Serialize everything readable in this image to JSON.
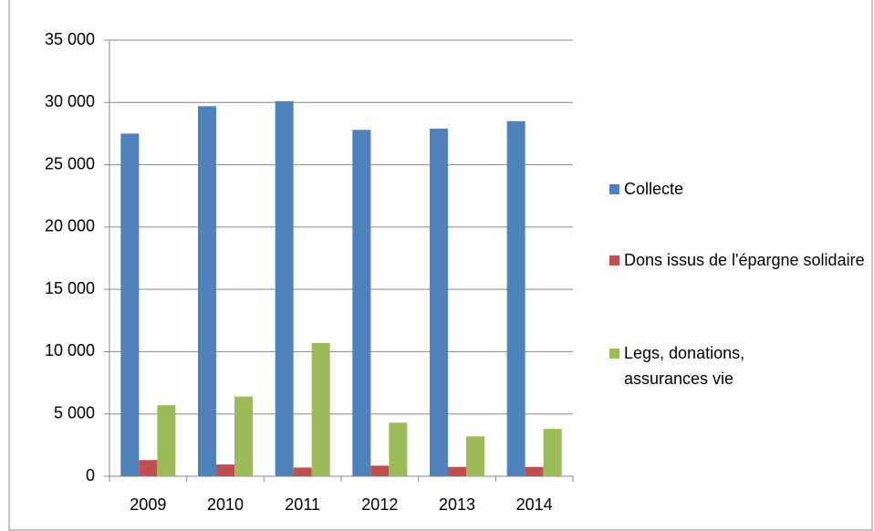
{
  "chart_data": {
    "type": "bar",
    "categories": [
      "2009",
      "2010",
      "2011",
      "2012",
      "2013",
      "2014"
    ],
    "series": [
      {
        "name": "Collecte",
        "color": "#4f81bd",
        "values": [
          27500,
          29700,
          30100,
          27800,
          27900,
          28500
        ]
      },
      {
        "name": "Dons issus de l'épargne solidaire",
        "color": "#c0504d",
        "values": [
          1300,
          950,
          700,
          850,
          750,
          750
        ]
      },
      {
        "name": "Legs, donations, assurances vie",
        "color": "#9bbb59",
        "values": [
          5700,
          6400,
          10700,
          4300,
          3200,
          3800
        ]
      }
    ],
    "ylim": [
      0,
      35000
    ],
    "yticks": [
      0,
      {
        "value": 5000,
        "label": "5 000"
      },
      {
        "value": 10000,
        "label": "10 000"
      },
      {
        "value": 15000,
        "label": "15 000"
      },
      {
        "value": 20000,
        "label": "20 000"
      },
      {
        "value": 25000,
        "label": "25 000"
      },
      {
        "value": 30000,
        "label": "30 000"
      },
      {
        "value": 35000,
        "label": "35 000"
      }
    ],
    "grid": true,
    "legend": "right"
  }
}
